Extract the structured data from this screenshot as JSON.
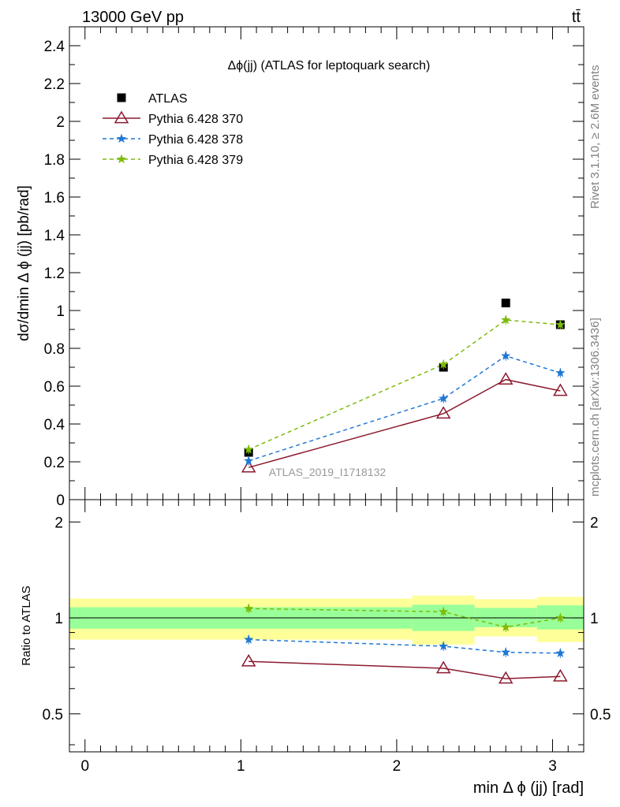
{
  "header": {
    "left": "13000 GeV pp",
    "right": "tt̄"
  },
  "side_labels": {
    "top": "Rivet 3.1.10, ≥ 2.6M events",
    "bottom": "mcplots.cern.ch [arXiv:1306.3436]"
  },
  "chart_data": [
    {
      "type": "scatter",
      "title": "Δϕ(jj) (ATLAS for leptoquark search)",
      "watermark": "ATLAS_2019_I1718132",
      "xlabel": "min Δ ϕ (jj) [rad]",
      "ylabel": "dσ/dmin Δ ϕ (jj) [pb/rad]",
      "xlim": [
        -0.1,
        3.2
      ],
      "ylim": [
        0,
        2.5
      ],
      "x_ticks": [
        "0",
        "1",
        "2",
        "3"
      ],
      "y_ticks": [
        "0",
        "0.2",
        "0.4",
        "0.6",
        "0.8",
        "1",
        "1.2",
        "1.4",
        "1.6",
        "1.8",
        "2",
        "2.2",
        "2.4"
      ],
      "legend_position": "top-left",
      "x": [
        1.05,
        2.3,
        2.7,
        3.05
      ],
      "series": [
        {
          "name": "ATLAS",
          "color": "#000000",
          "marker": "square",
          "values": [
            0.25,
            0.7,
            1.04,
            0.925
          ]
        },
        {
          "name": "Pythia 6.428 370",
          "color": "#8b1a2e",
          "marker": "open-triangle",
          "line": "solid",
          "values": [
            0.17,
            0.455,
            0.635,
            0.575
          ]
        },
        {
          "name": "Pythia 6.428 378",
          "color": "#1f77d4",
          "marker": "star",
          "line": "dashed",
          "values": [
            0.205,
            0.535,
            0.76,
            0.67
          ]
        },
        {
          "name": "Pythia 6.428 379",
          "color": "#7cbb0a",
          "marker": "star",
          "line": "dashed",
          "values": [
            0.265,
            0.715,
            0.95,
            0.925
          ]
        }
      ]
    },
    {
      "type": "scatter",
      "ylabel": "Ratio to ATLAS",
      "xlabel": "min Δ ϕ (jj) [rad]",
      "xlim": [
        -0.1,
        3.2
      ],
      "ylim": [
        0.38,
        2.35
      ],
      "y_ticks": [
        "0.5",
        "1",
        "2"
      ],
      "x": [
        1.05,
        2.3,
        2.7,
        3.05
      ],
      "bands": [
        {
          "x0": -0.1,
          "x1": 2.1,
          "inner": [
            0.925,
            1.08
          ],
          "outer": [
            0.855,
            1.15
          ]
        },
        {
          "x0": 2.1,
          "x1": 2.5,
          "inner": [
            0.91,
            1.1
          ],
          "outer": [
            0.825,
            1.175
          ]
        },
        {
          "x0": 2.5,
          "x1": 2.9,
          "inner": [
            0.935,
            1.075
          ],
          "outer": [
            0.875,
            1.145
          ]
        },
        {
          "x0": 2.9,
          "x1": 3.2,
          "inner": [
            0.92,
            1.095
          ],
          "outer": [
            0.84,
            1.165
          ]
        }
      ],
      "series": [
        {
          "name": "Pythia 6.428 370",
          "color": "#8b1a2e",
          "marker": "open-triangle",
          "line": "solid",
          "values": [
            0.73,
            0.695,
            0.645,
            0.655
          ]
        },
        {
          "name": "Pythia 6.428 378",
          "color": "#1f77d4",
          "marker": "star",
          "line": "dashed",
          "values": [
            0.855,
            0.815,
            0.78,
            0.775
          ]
        },
        {
          "name": "Pythia 6.428 379",
          "color": "#7cbb0a",
          "marker": "star",
          "line": "dashed",
          "values": [
            1.07,
            1.045,
            0.935,
            1.0
          ]
        }
      ]
    }
  ]
}
